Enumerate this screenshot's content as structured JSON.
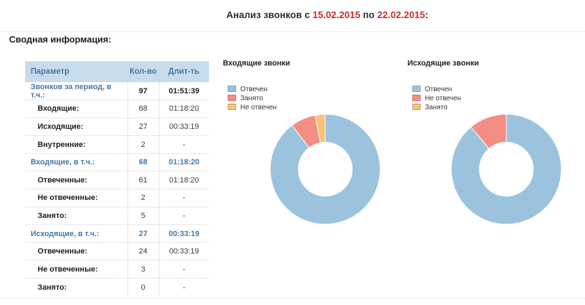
{
  "title": {
    "prefix": "Анализ звонков с",
    "date_from": "15.02.2015",
    "middle": "по",
    "date_to": "22.02.2015",
    "suffix": ":"
  },
  "section_heading": "Сводная информация:",
  "colors": {
    "accent_blue": "#4678A6",
    "header_bg": "#C9DCEB",
    "date_red": "#C62B2B",
    "answered_blue": "#9CC3DE",
    "salmon_red": "#F28E84",
    "orange": "#F7C377"
  },
  "table": {
    "headers": [
      "Параметр",
      "Кол-во",
      "Длит-ть"
    ],
    "rows": [
      {
        "label": "Звонков за период, в т.ч.:",
        "count": "97",
        "duration": "01:51:39",
        "style": "total"
      },
      {
        "label": "Входящие:",
        "count": "68",
        "duration": "01:18:20",
        "style": "sub"
      },
      {
        "label": "Исходящие:",
        "count": "27",
        "duration": "00:33:19",
        "style": "sub"
      },
      {
        "label": "Внутренние:",
        "count": "2",
        "duration": "-",
        "style": "sub"
      },
      {
        "label": "Входящие, в т.ч.:",
        "count": "68",
        "duration": "01:18:20",
        "style": "group"
      },
      {
        "label": "Отвеченные:",
        "count": "61",
        "duration": "01:18:20",
        "style": "sub"
      },
      {
        "label": "Не отвеченные:",
        "count": "2",
        "duration": "-",
        "style": "sub"
      },
      {
        "label": "Занято:",
        "count": "5",
        "duration": "-",
        "style": "sub"
      },
      {
        "label": "Исходящие, в т.ч.:",
        "count": "27",
        "duration": "00:33:19",
        "style": "group"
      },
      {
        "label": "Отвеченные:",
        "count": "24",
        "duration": "00:33:19",
        "style": "sub"
      },
      {
        "label": "Не отвеченные:",
        "count": "3",
        "duration": "-",
        "style": "sub"
      },
      {
        "label": "Занято:",
        "count": "0",
        "duration": "-",
        "style": "sub"
      }
    ]
  },
  "chart_data": [
    {
      "type": "pie",
      "subtype": "donut",
      "title": "Входящие звонки",
      "legend_position": "top-left",
      "start_angle": "top",
      "direction": "clockwise",
      "hole_ratio": 0.49,
      "series": [
        {
          "key": "answered",
          "name": "Отвечен",
          "value": 61,
          "color": "#9CC3DE"
        },
        {
          "key": "busy",
          "name": "Занято",
          "value": 5,
          "color": "#F28E84"
        },
        {
          "key": "unanswered",
          "name": "Не отвечен",
          "value": 2,
          "color": "#F7C377"
        }
      ]
    },
    {
      "type": "pie",
      "subtype": "donut",
      "title": "Исходящие звонки",
      "legend_position": "top-left",
      "start_angle": "top",
      "direction": "clockwise",
      "hole_ratio": 0.49,
      "series": [
        {
          "key": "answered",
          "name": "Отвечен",
          "value": 24,
          "color": "#9CC3DE"
        },
        {
          "key": "unanswered",
          "name": "Не отвечен",
          "value": 3,
          "color": "#F28E84"
        },
        {
          "key": "busy",
          "name": "Занято",
          "value": 0,
          "color": "#F7C377"
        }
      ]
    }
  ]
}
